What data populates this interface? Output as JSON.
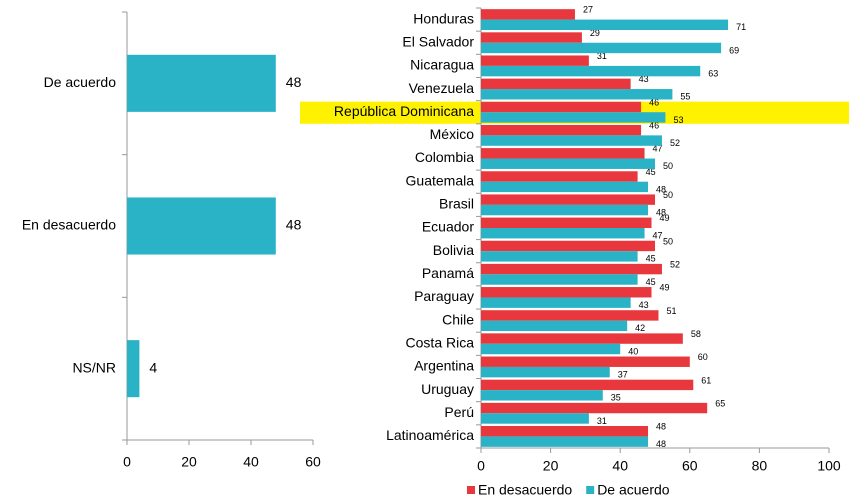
{
  "chart_data": [
    {
      "type": "bar",
      "orientation": "horizontal",
      "categories": [
        "De acuerdo",
        "En desacuerdo",
        "NS/NR"
      ],
      "values": [
        48,
        48,
        4
      ],
      "color": "#2ab3c6",
      "xlim": [
        0,
        60
      ],
      "xticks": [
        0,
        20,
        40,
        60
      ]
    },
    {
      "type": "bar",
      "orientation": "horizontal",
      "categories": [
        "Honduras",
        "El Salvador",
        "Nicaragua",
        "Venezuela",
        "República Dominicana",
        "México",
        "Colombia",
        "Guatemala",
        "Brasil",
        "Ecuador",
        "Bolivia",
        "Panamá",
        "Paraguay",
        "Chile",
        "Costa Rica",
        "Argentina",
        "Uruguay",
        "Perú",
        "Latinoamérica"
      ],
      "series": [
        {
          "name": "En desacuerdo",
          "color": "#e8383d",
          "values": [
            27,
            29,
            31,
            43,
            46,
            46,
            47,
            45,
            50,
            49,
            50,
            52,
            49,
            51,
            58,
            60,
            61,
            65,
            48
          ]
        },
        {
          "name": "De acuerdo",
          "color": "#2ab3c6",
          "values": [
            71,
            69,
            63,
            55,
            53,
            52,
            50,
            48,
            48,
            47,
            45,
            45,
            43,
            42,
            40,
            37,
            35,
            31,
            48
          ]
        }
      ],
      "highlight": {
        "index": 4,
        "color": "#fff200"
      },
      "xlim": [
        0,
        100
      ],
      "xticks": [
        0,
        20,
        40,
        60,
        80,
        100
      ],
      "legend": "bottom"
    }
  ]
}
